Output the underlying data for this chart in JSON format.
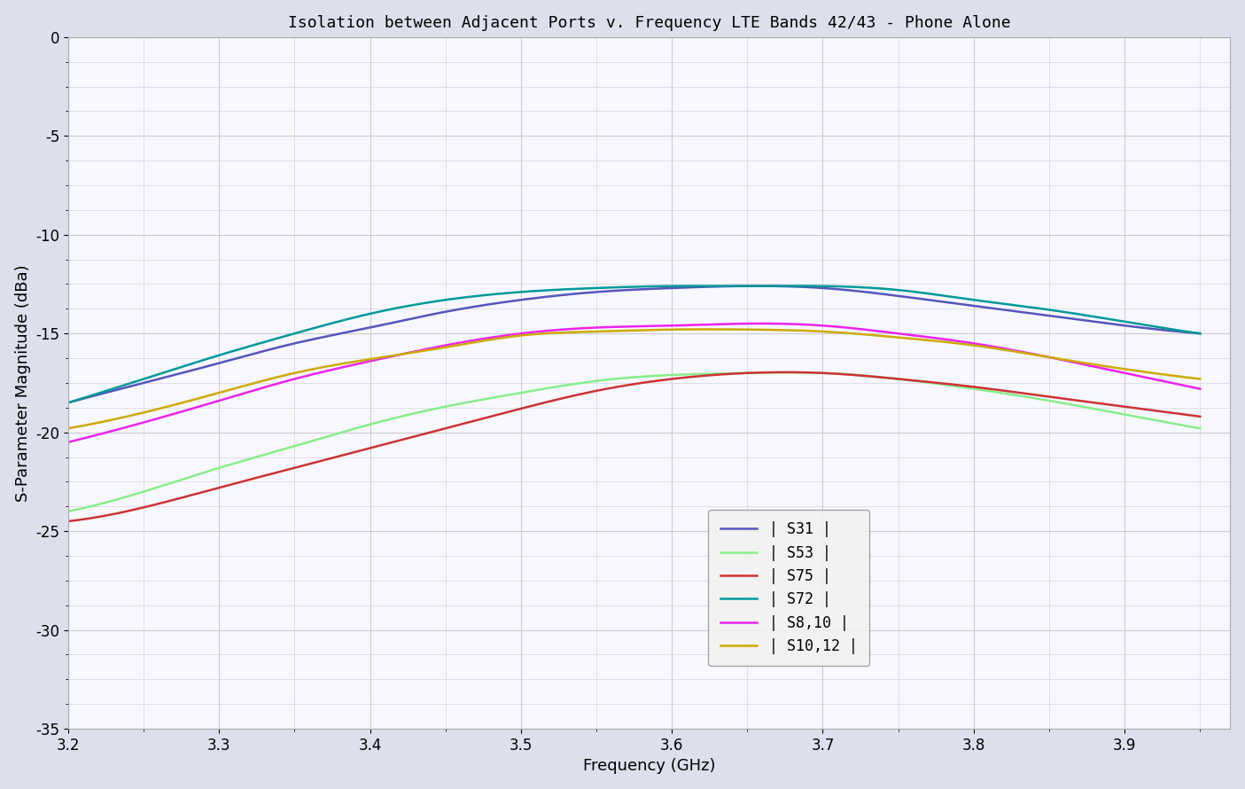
{
  "title": "Isolation between Adjacent Ports v. Frequency LTE Bands 42/43 - Phone Alone",
  "xlabel": "Frequency (GHz)",
  "ylabel": "S-Parameter Magnitude (dBa)",
  "xlim": [
    3.2,
    3.97
  ],
  "ylim": [
    -35,
    0
  ],
  "xticks": [
    3.2,
    3.3,
    3.4,
    3.5,
    3.6,
    3.7,
    3.8,
    3.9
  ],
  "yticks": [
    0,
    -5,
    -10,
    -15,
    -20,
    -25,
    -30,
    -35
  ],
  "background_color": "#e8eaf2",
  "plot_bg_color": "#f8f8ff",
  "grid_color": "#cccccc",
  "series": [
    {
      "label": "| S31 |",
      "color": "#5555bb",
      "lw": 1.8,
      "x": [
        3.2,
        3.25,
        3.3,
        3.35,
        3.4,
        3.45,
        3.5,
        3.55,
        3.6,
        3.65,
        3.7,
        3.75,
        3.8,
        3.85,
        3.9,
        3.95
      ],
      "y": [
        -18.5,
        -17.5,
        -16.5,
        -15.5,
        -14.7,
        -13.9,
        -13.3,
        -12.9,
        -12.7,
        -12.6,
        -12.7,
        -13.1,
        -13.6,
        -14.1,
        -14.6,
        -15.0
      ]
    },
    {
      "label": "| S53 |",
      "color": "#88ee88",
      "lw": 1.8,
      "x": [
        3.2,
        3.25,
        3.3,
        3.35,
        3.4,
        3.45,
        3.5,
        3.55,
        3.6,
        3.65,
        3.7,
        3.75,
        3.8,
        3.85,
        3.9,
        3.95
      ],
      "y": [
        -24.0,
        -23.0,
        -21.8,
        -20.7,
        -19.6,
        -18.7,
        -18.0,
        -17.4,
        -17.1,
        -17.0,
        -17.0,
        -17.3,
        -17.8,
        -18.4,
        -19.1,
        -19.8
      ]
    },
    {
      "label": "| S75 |",
      "color": "#cc3333",
      "lw": 1.8,
      "x": [
        3.2,
        3.25,
        3.3,
        3.35,
        3.4,
        3.45,
        3.5,
        3.55,
        3.6,
        3.65,
        3.7,
        3.75,
        3.8,
        3.85,
        3.9,
        3.95
      ],
      "y": [
        -24.5,
        -23.8,
        -22.8,
        -21.8,
        -20.8,
        -19.8,
        -18.8,
        -17.9,
        -17.3,
        -17.0,
        -17.0,
        -17.3,
        -17.7,
        -18.2,
        -18.7,
        -19.2
      ]
    },
    {
      "label": "| S72 |",
      "color": "#009999",
      "lw": 1.8,
      "x": [
        3.2,
        3.25,
        3.3,
        3.35,
        3.4,
        3.45,
        3.5,
        3.55,
        3.6,
        3.65,
        3.7,
        3.75,
        3.8,
        3.85,
        3.9,
        3.95
      ],
      "y": [
        -18.5,
        -17.3,
        -16.1,
        -15.0,
        -14.0,
        -13.3,
        -12.9,
        -12.7,
        -12.6,
        -12.6,
        -12.6,
        -12.8,
        -13.3,
        -13.8,
        -14.4,
        -15.0
      ]
    },
    {
      "label": "| S8,10 |",
      "color": "#ee22ee",
      "lw": 1.8,
      "x": [
        3.2,
        3.25,
        3.3,
        3.35,
        3.4,
        3.45,
        3.5,
        3.55,
        3.6,
        3.65,
        3.7,
        3.75,
        3.8,
        3.85,
        3.9,
        3.95
      ],
      "y": [
        -20.5,
        -19.5,
        -18.4,
        -17.3,
        -16.4,
        -15.6,
        -15.0,
        -14.7,
        -14.6,
        -14.5,
        -14.6,
        -15.0,
        -15.5,
        -16.2,
        -17.0,
        -17.8
      ]
    },
    {
      "label": "| S10,12 |",
      "color": "#ccaa00",
      "lw": 1.8,
      "x": [
        3.2,
        3.25,
        3.3,
        3.35,
        3.4,
        3.45,
        3.5,
        3.55,
        3.6,
        3.65,
        3.7,
        3.75,
        3.8,
        3.85,
        3.9,
        3.95
      ],
      "y": [
        -19.8,
        -19.0,
        -18.0,
        -17.0,
        -16.3,
        -15.7,
        -15.1,
        -14.9,
        -14.8,
        -14.8,
        -14.9,
        -15.2,
        -15.6,
        -16.2,
        -16.8,
        -17.3
      ]
    }
  ],
  "title_fontsize": 13,
  "label_fontsize": 13,
  "tick_fontsize": 12,
  "legend_fontsize": 12
}
